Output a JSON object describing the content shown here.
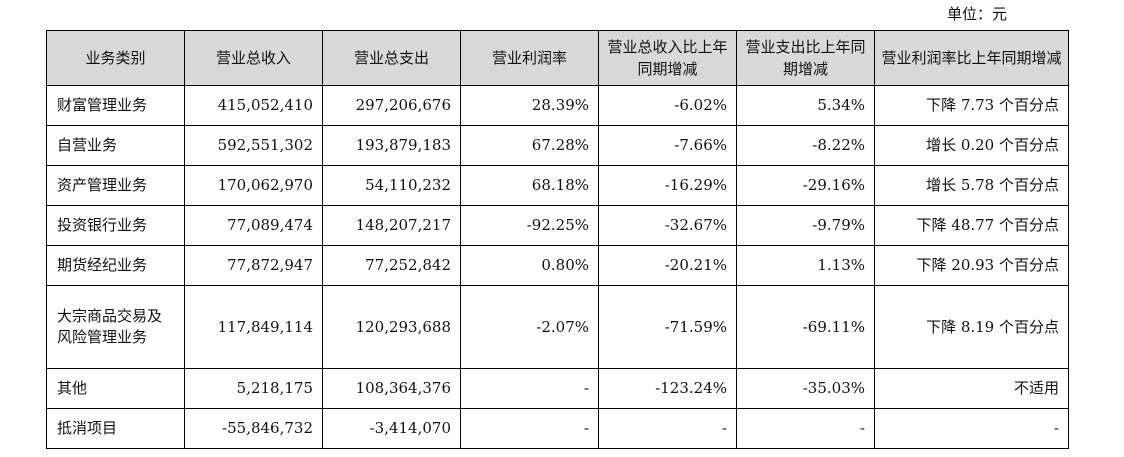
{
  "unit_label": "单位：元",
  "headers": [
    "业务类别",
    "营业总收入",
    "营业总支出",
    "营业利润率",
    "营业总收入比上年同期增减",
    "营业支出比上年同期增减",
    "营业利润率比上年同期增减"
  ],
  "rows": [
    {
      "category": "财富管理业务",
      "revenue": "415,052,410",
      "expense": "297,206,676",
      "margin": "28.39%",
      "revenue_yoy": "-6.02%",
      "expense_yoy": "5.34%",
      "margin_yoy": "下降 7.73 个百分点"
    },
    {
      "category": "自营业务",
      "revenue": "592,551,302",
      "expense": "193,879,183",
      "margin": "67.28%",
      "revenue_yoy": "-7.66%",
      "expense_yoy": "-8.22%",
      "margin_yoy": "增长 0.20 个百分点"
    },
    {
      "category": "资产管理业务",
      "revenue": "170,062,970",
      "expense": "54,110,232",
      "margin": "68.18%",
      "revenue_yoy": "-16.29%",
      "expense_yoy": "-29.16%",
      "margin_yoy": "增长 5.78 个百分点"
    },
    {
      "category": "投资银行业务",
      "revenue": "77,089,474",
      "expense": "148,207,217",
      "margin": "-92.25%",
      "revenue_yoy": "-32.67%",
      "expense_yoy": "-9.79%",
      "margin_yoy": "下降 48.77 个百分点"
    },
    {
      "category": "期货经纪业务",
      "revenue": "77,872,947",
      "expense": "77,252,842",
      "margin": "0.80%",
      "revenue_yoy": "-20.21%",
      "expense_yoy": "1.13%",
      "margin_yoy": "下降 20.93 个百分点"
    },
    {
      "category": "大宗商品交易及风险管理业务",
      "revenue": "117,849,114",
      "expense": "120,293,688",
      "margin": "-2.07%",
      "revenue_yoy": "-71.59%",
      "expense_yoy": "-69.11%",
      "margin_yoy": "下降 8.19 个百分点"
    },
    {
      "category": "其他",
      "revenue": "5,218,175",
      "expense": "108,364,376",
      "margin": "-",
      "revenue_yoy": "-123.24%",
      "expense_yoy": "-35.03%",
      "margin_yoy": "不适用"
    },
    {
      "category": "抵消项目",
      "revenue": "-55,846,732",
      "expense": "-3,414,070",
      "margin": "-",
      "revenue_yoy": "-",
      "expense_yoy": "-",
      "margin_yoy": "-"
    }
  ]
}
